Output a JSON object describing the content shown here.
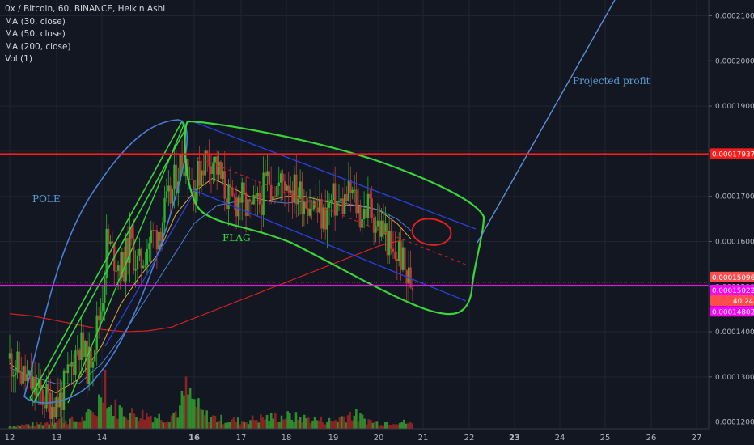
{
  "legend": {
    "symbol": "0x / Bitcoin, 60, BINANCE, Heikin Ashi",
    "ma30": "MA (30, close)",
    "ma50": "MA (50, close)",
    "ma200": "MA (200, close)",
    "vol": "Vol (1)"
  },
  "chart_data": {
    "type": "candlestick",
    "x_ticks": [
      "12",
      "13",
      "14",
      "16",
      "17",
      "18",
      "19",
      "20",
      "21",
      "22",
      "23",
      "24",
      "25",
      "26",
      "27"
    ],
    "y_ticks": [
      "0.00012000",
      "0.00013000",
      "0.00014000",
      "0.00015000",
      "0.00016000",
      "0.00017000",
      "0.00018000",
      "0.00019000",
      "0.00020000",
      "0.00021000"
    ],
    "ylim": [
      0.0001185,
      0.0002135
    ],
    "horizontal_lines": [
      {
        "value": 0.00017937,
        "color": "#ff1a1a"
      },
      {
        "value": 0.00015022,
        "color": "#ff00ff"
      }
    ],
    "price_tags": [
      {
        "label": "0.00017937",
        "color": "#ff1a1a"
      },
      {
        "label": "0.00015096",
        "color": "#ff4d4d"
      },
      {
        "label": "0.00015022",
        "color": "#ff00ff"
      },
      {
        "label": "40:24",
        "color": "#ff4d4d"
      },
      {
        "label": "0.00014802",
        "color": "#ff00ff"
      }
    ],
    "annotations": [
      {
        "text": "POLE",
        "color": "#5b9bd5"
      },
      {
        "text": "FLAG",
        "color": "#33dd33"
      },
      {
        "text": "Projected profit",
        "color": "#5b9bd5"
      }
    ],
    "candles": {
      "anchors_close": [
        [
          12.0,
          0.000134
        ],
        [
          12.3,
          0.00013
        ],
        [
          12.6,
          0.0001265
        ],
        [
          12.9,
          0.0001245
        ],
        [
          13.1,
          0.000125
        ],
        [
          13.3,
          0.000131
        ],
        [
          13.5,
          0.000138
        ],
        [
          13.7,
          0.000132
        ],
        [
          13.85,
          0.000139
        ],
        [
          14.0,
          0.000147
        ],
        [
          14.1,
          0.00016
        ],
        [
          14.25,
          0.000157
        ],
        [
          14.45,
          0.000154
        ],
        [
          14.6,
          0.00016
        ],
        [
          14.8,
          0.000154
        ],
        [
          15.0,
          0.00016
        ],
        [
          15.2,
          0.000162
        ],
        [
          15.35,
          0.000166
        ],
        [
          15.5,
          0.00017
        ],
        [
          15.65,
          0.000176
        ],
        [
          15.8,
          0.000179
        ],
        [
          16.0,
          0.000172
        ],
        [
          16.2,
          0.000178
        ],
        [
          16.4,
          0.000179
        ],
        [
          16.6,
          0.000173
        ],
        [
          16.8,
          0.000168
        ],
        [
          17.0,
          0.00017
        ],
        [
          17.2,
          0.000166
        ],
        [
          17.4,
          0.000168
        ],
        [
          17.6,
          0.000174
        ],
        [
          17.8,
          0.000172
        ],
        [
          18.0,
          0.000174
        ],
        [
          18.2,
          0.000171
        ],
        [
          18.4,
          0.00017
        ],
        [
          18.6,
          0.000168
        ],
        [
          18.8,
          0.000165
        ],
        [
          19.0,
          0.000169
        ],
        [
          19.2,
          0.000168
        ],
        [
          19.4,
          0.000171
        ],
        [
          19.6,
          0.000166
        ],
        [
          19.8,
          0.000168
        ],
        [
          20.0,
          0.000163
        ],
        [
          20.15,
          0.000162
        ],
        [
          20.3,
          0.000156
        ],
        [
          20.45,
          0.000158
        ],
        [
          20.6,
          0.000152
        ],
        [
          20.75,
          0.000151
        ]
      ]
    },
    "ma200_anchors": [
      [
        12.0,
        0.000144
      ],
      [
        12.5,
        0.0001435
      ],
      [
        13.0,
        0.0001425
      ],
      [
        13.5,
        0.0001415
      ],
      [
        14.0,
        0.0001405
      ],
      [
        14.5,
        0.00014
      ],
      [
        15.0,
        0.0001402
      ],
      [
        15.5,
        0.000141
      ],
      [
        16.0,
        0.000143
      ],
      [
        16.5,
        0.000145
      ],
      [
        17.0,
        0.000147
      ],
      [
        17.5,
        0.000149
      ],
      [
        18.0,
        0.000151
      ],
      [
        18.5,
        0.000153
      ],
      [
        19.0,
        0.000155
      ],
      [
        19.5,
        0.000157
      ],
      [
        20.0,
        0.000159
      ],
      [
        20.3,
        0.0001598
      ],
      [
        20.55,
        0.0001603
      ]
    ],
    "ma30_anchors": [
      [
        12.0,
        0.000133
      ],
      [
        12.5,
        0.000129
      ],
      [
        13.0,
        0.0001265
      ],
      [
        13.5,
        0.0001295
      ],
      [
        14.0,
        0.000137
      ],
      [
        14.4,
        0.000146
      ],
      [
        14.8,
        0.000152
      ],
      [
        15.2,
        0.000157
      ],
      [
        15.6,
        0.000166
      ],
      [
        16.0,
        0.000171
      ],
      [
        16.4,
        0.000174
      ],
      [
        16.8,
        0.000172
      ],
      [
        17.2,
        0.00017
      ],
      [
        17.6,
        0.000169
      ],
      [
        18.0,
        0.00017
      ],
      [
        18.4,
        0.00017
      ],
      [
        18.8,
        0.000169
      ],
      [
        19.2,
        0.000168
      ],
      [
        19.6,
        0.000168
      ],
      [
        20.0,
        0.000167
      ],
      [
        20.4,
        0.000164
      ],
      [
        20.75,
        0.00016
      ]
    ],
    "ma50_anchors": [
      [
        12.0,
        0.000132
      ],
      [
        12.5,
        0.00013
      ],
      [
        13.0,
        0.0001285
      ],
      [
        13.5,
        0.0001285
      ],
      [
        14.0,
        0.000133
      ],
      [
        14.5,
        0.00014
      ],
      [
        15.0,
        0.000148
      ],
      [
        15.5,
        0.000156
      ],
      [
        16.0,
        0.000164
      ],
      [
        16.5,
        0.000168
      ],
      [
        17.0,
        0.000169
      ],
      [
        17.5,
        0.000169
      ],
      [
        18.0,
        0.0001685
      ],
      [
        18.5,
        0.000169
      ],
      [
        19.0,
        0.000169
      ],
      [
        19.5,
        0.000168
      ],
      [
        20.0,
        0.000167
      ],
      [
        20.4,
        0.000165
      ],
      [
        20.75,
        0.000162
      ]
    ],
    "volume_anchors": [
      [
        12.0,
        0.2
      ],
      [
        12.6,
        0.3
      ],
      [
        13.1,
        0.6
      ],
      [
        13.5,
        0.5
      ],
      [
        13.9,
        1.2
      ],
      [
        14.05,
        4.0
      ],
      [
        14.15,
        1.5
      ],
      [
        14.6,
        1.0
      ],
      [
        15.0,
        0.9
      ],
      [
        15.4,
        0.7
      ],
      [
        15.7,
        1.3
      ],
      [
        15.8,
        2.5
      ],
      [
        16.2,
        0.9
      ],
      [
        16.6,
        0.6
      ],
      [
        17.0,
        0.5
      ],
      [
        17.5,
        0.7
      ],
      [
        18.0,
        0.8
      ],
      [
        18.6,
        0.6
      ],
      [
        19.0,
        0.5
      ],
      [
        19.4,
        1.0
      ],
      [
        19.7,
        0.6
      ],
      [
        20.0,
        0.4
      ],
      [
        20.4,
        0.5
      ],
      [
        20.75,
        0.3
      ]
    ],
    "volume_scale_max": 4.0
  }
}
